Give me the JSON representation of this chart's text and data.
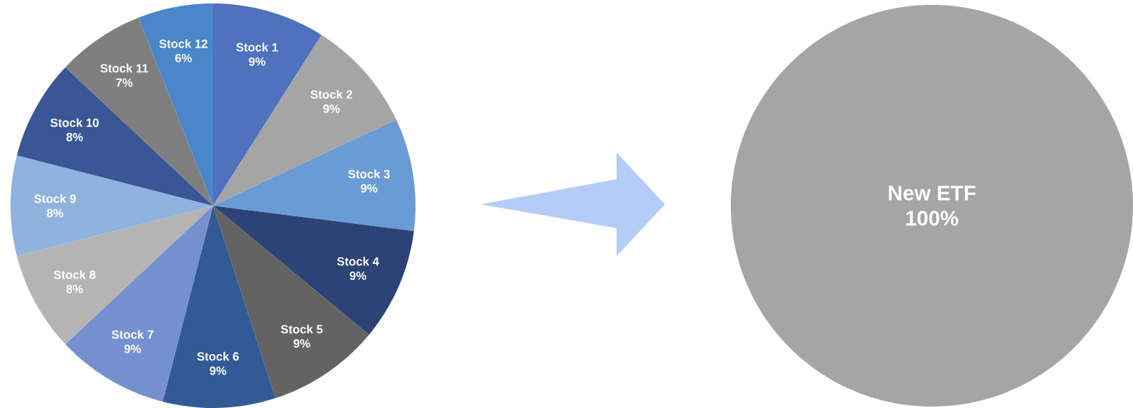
{
  "chart_data": [
    {
      "type": "pie",
      "categories": [
        "Stock 1",
        "Stock 2",
        "Stock 3",
        "Stock 4",
        "Stock 5",
        "Stock 6",
        "Stock 7",
        "Stock 8",
        "Stock 9",
        "Stock 10",
        "Stock 11",
        "Stock 12"
      ],
      "values": [
        9,
        9,
        9,
        9,
        9,
        9,
        9,
        8,
        8,
        8,
        7,
        6
      ],
      "value_labels": [
        "9%",
        "9%",
        "9%",
        "9%",
        "9%",
        "9%",
        "9%",
        "8%",
        "8%",
        "8%",
        "7%",
        "6%"
      ],
      "colors": [
        "#4f71be",
        "#a5a5a5",
        "#6a9bd4",
        "#2d4275",
        "#636363",
        "#325b96",
        "#7590cf",
        "#b4b4b4",
        "#8fb2de",
        "#3a5697",
        "#7f7f7f",
        "#4a86c8"
      ]
    },
    {
      "type": "pie",
      "categories": [
        "New ETF"
      ],
      "values": [
        100
      ],
      "value_labels": [
        "100%"
      ],
      "colors": [
        "#a5a5a5"
      ]
    }
  ]
}
